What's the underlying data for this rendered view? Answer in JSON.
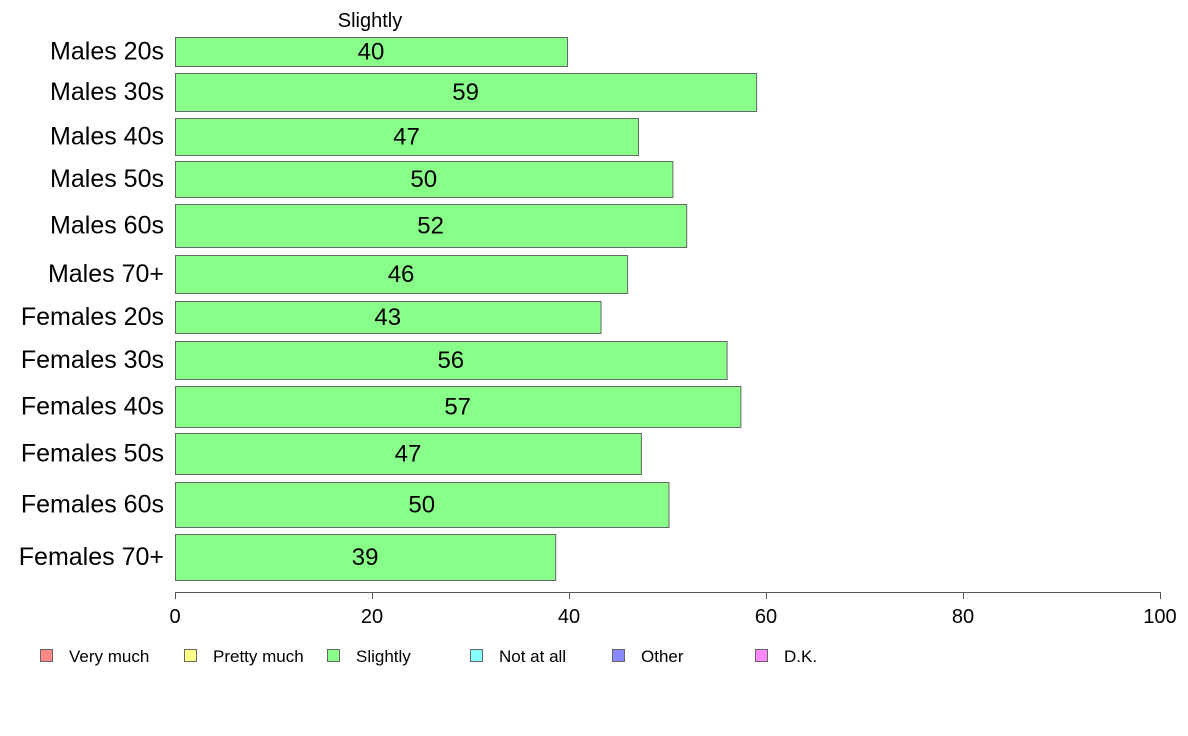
{
  "chart_data": {
    "type": "bar",
    "orientation": "horizontal",
    "title": "Slightly",
    "categories": [
      "Males 20s",
      "Males 30s",
      "Males 40s",
      "Males 50s",
      "Males 60s",
      "Males 70+",
      "Females 20s",
      "Females 30s",
      "Females 40s",
      "Females 50s",
      "Females 60s",
      "Females 70+"
    ],
    "series": [
      {
        "name": "Slightly",
        "color": "#88ff88",
        "values": [
          39.8,
          59.0,
          47.0,
          50.5,
          51.9,
          45.9,
          43.2,
          56.0,
          57.4,
          47.3,
          50.1,
          38.6
        ],
        "labels": [
          "40",
          "59",
          "47",
          "50",
          "52",
          "46",
          "43",
          "56",
          "57",
          "47",
          "50",
          "39"
        ]
      }
    ],
    "xlim": [
      0,
      100
    ],
    "xticks": [
      "0",
      "20",
      "40",
      "60",
      "80",
      "100"
    ],
    "grid": false,
    "legend": {
      "placement": "bottom",
      "items": [
        {
          "label": "Very much",
          "color": "#ff8888"
        },
        {
          "label": "Pretty much",
          "color": "#ffff88"
        },
        {
          "label": "Slightly",
          "color": "#88ff88"
        },
        {
          "label": "Not at all",
          "color": "#88ffff"
        },
        {
          "label": "Other",
          "color": "#8888ff"
        },
        {
          "label": "D.K.",
          "color": "#ff88ff"
        }
      ]
    }
  }
}
